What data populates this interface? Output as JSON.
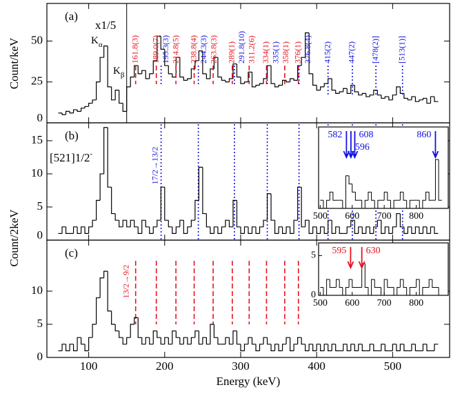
{
  "chart_data": [
    {
      "type": "histogram",
      "panel_label": "(a)",
      "y_label": "Count/keV",
      "bins": [
        60,
        65,
        70,
        75,
        80,
        85,
        90,
        95,
        100,
        105,
        110,
        115,
        120,
        125,
        130,
        135,
        140,
        145,
        150,
        155,
        160,
        165,
        170,
        175,
        180,
        185,
        190,
        195,
        200,
        205,
        210,
        215,
        220,
        225,
        230,
        235,
        240,
        245,
        250,
        255,
        260,
        265,
        270,
        275,
        280,
        285,
        290,
        295,
        300,
        305,
        310,
        315,
        320,
        325,
        330,
        335,
        340,
        345,
        350,
        355,
        360,
        365,
        370,
        375,
        380,
        385,
        390,
        395,
        400,
        405,
        410,
        415,
        420,
        425,
        430,
        435,
        440,
        445,
        450,
        455,
        460,
        465,
        470,
        475,
        480,
        485,
        490,
        495,
        500,
        505,
        510,
        515,
        520,
        525,
        530,
        535,
        540,
        545,
        550,
        555,
        560
      ],
      "values": [
        6,
        5,
        7,
        6,
        8,
        7,
        9,
        10,
        12,
        14,
        25,
        40,
        47,
        22,
        14,
        20,
        12,
        7,
        22,
        28,
        35,
        30,
        32,
        27,
        30,
        38,
        53,
        45,
        35,
        30,
        28,
        40,
        28,
        26,
        27,
        33,
        38,
        44,
        30,
        27,
        33,
        40,
        28,
        26,
        25,
        27,
        36,
        28,
        24,
        25,
        31,
        22,
        23,
        24,
        27,
        35,
        24,
        22,
        23,
        26,
        25,
        27,
        26,
        35,
        40,
        55,
        30,
        23,
        20,
        22,
        24,
        27,
        20,
        18,
        19,
        21,
        18,
        23,
        19,
        17,
        18,
        16,
        17,
        20,
        17,
        15,
        16,
        14,
        17,
        22,
        18,
        15,
        14,
        16,
        13,
        14,
        15,
        12,
        16,
        13
      ],
      "xlim": [
        45,
        575
      ],
      "ylim": [
        0,
        73
      ],
      "xticks": [
        100,
        200,
        300,
        400,
        500
      ],
      "yticks": [
        0,
        25,
        50
      ],
      "scale_break": 150,
      "scale_note": "x1/5",
      "k_alpha": {
        "base": "K",
        "sub": "α"
      },
      "k_beta": {
        "base": "K",
        "sub": "β"
      },
      "peaks": [
        {
          "energy": 161.8,
          "label": "161.8(3)",
          "color": "#e8101c"
        },
        {
          "energy": 189.0,
          "label": "189.0(7)",
          "color": "#e8101c"
        },
        {
          "energy": 195.3,
          "label": "195.3(3)",
          "color": "#1010e0"
        },
        {
          "energy": 214.8,
          "label": "214.8(5)",
          "color": "#e8101c"
        },
        {
          "energy": 238.8,
          "label": "238.8(4)",
          "color": "#e8101c"
        },
        {
          "energy": 244.3,
          "label": "244.3(3)",
          "color": "#1010e0"
        },
        {
          "energy": 263.8,
          "label": "263.8(3)",
          "color": "#e8101c"
        },
        {
          "energy": 289,
          "label": "289(1)",
          "color": "#e8101c"
        },
        {
          "energy": 291.8,
          "label": "291.8(10)",
          "color": "#1010e0"
        },
        {
          "energy": 311.2,
          "label": "311.2(6)",
          "color": "#e8101c"
        },
        {
          "energy": 334,
          "label": "334(1)",
          "color": "#e8101c"
        },
        {
          "energy": 335,
          "label": "335(1)",
          "color": "#1010e0"
        },
        {
          "energy": 358,
          "label": "358(1)",
          "color": "#e8101c"
        },
        {
          "energy": 376,
          "label": "376(1)",
          "color": "#e8101c"
        },
        {
          "energy": 376.8,
          "label": "376.8(4)",
          "color": "#1010e0"
        },
        {
          "energy": 415,
          "label": "415(2)",
          "color": "#1010e0"
        },
        {
          "energy": 447,
          "label": "447(2)",
          "color": "#1010e0"
        },
        {
          "energy": 478,
          "label": "[478(2)]",
          "color": "#1010e0"
        },
        {
          "energy": 513,
          "label": "[513(1)]",
          "color": "#1010e0"
        }
      ]
    },
    {
      "type": "histogram",
      "panel_label": "(b)",
      "y_label": "Count/2keV",
      "band_label": {
        "base": "[521]1/2",
        "sup": "-"
      },
      "transition": "17/2→13/2",
      "transition_color": "#1010e0",
      "bins": [
        60,
        65,
        70,
        75,
        80,
        85,
        90,
        95,
        100,
        105,
        110,
        115,
        120,
        125,
        130,
        135,
        140,
        145,
        150,
        155,
        160,
        165,
        170,
        175,
        180,
        185,
        190,
        195,
        200,
        205,
        210,
        215,
        220,
        225,
        230,
        235,
        240,
        245,
        250,
        255,
        260,
        265,
        270,
        275,
        280,
        285,
        290,
        295,
        300,
        305,
        310,
        315,
        320,
        325,
        330,
        335,
        340,
        345,
        350,
        355,
        360,
        365,
        370,
        375,
        380,
        385,
        390,
        395,
        400,
        405,
        410,
        415,
        420,
        425,
        430,
        435,
        440,
        445,
        450,
        455,
        460,
        465,
        470,
        475,
        480,
        485,
        490,
        495,
        500,
        505,
        510,
        515,
        520,
        525,
        530,
        535,
        540,
        545,
        550,
        555,
        560
      ],
      "values": [
        1,
        2,
        1,
        1,
        2,
        1,
        2,
        1,
        2,
        3,
        6,
        10,
        17,
        8,
        4,
        3,
        2,
        3,
        2,
        3,
        2,
        1,
        3,
        2,
        1,
        2,
        3,
        8,
        3,
        2,
        1,
        2,
        3,
        1,
        2,
        3,
        6,
        11,
        4,
        2,
        1,
        2,
        1,
        2,
        3,
        2,
        6,
        2,
        1,
        2,
        1,
        2,
        1,
        2,
        3,
        7,
        3,
        1,
        2,
        1,
        2,
        1,
        3,
        8,
        2,
        3,
        1,
        2,
        1,
        2,
        1,
        3,
        1,
        2,
        1,
        1,
        2,
        3,
        1,
        2,
        1,
        2,
        1,
        2,
        3,
        1,
        2,
        1,
        2,
        4,
        2,
        1,
        2,
        1,
        2,
        1,
        2,
        1,
        2,
        1
      ],
      "xlim": [
        45,
        575
      ],
      "ylim": [
        0,
        17.7
      ],
      "xticks": [
        100,
        200,
        300,
        400,
        500
      ],
      "yticks": [
        0,
        5,
        10,
        15
      ],
      "inset": {
        "bins": [
          500,
          510,
          520,
          530,
          540,
          550,
          560,
          570,
          580,
          590,
          600,
          610,
          620,
          630,
          640,
          650,
          660,
          670,
          680,
          690,
          700,
          710,
          720,
          730,
          740,
          750,
          760,
          770,
          780,
          790,
          800,
          810,
          820,
          830,
          840,
          850,
          860,
          870,
          880
        ],
        "values": [
          1,
          0,
          1,
          2,
          1,
          1,
          1,
          0,
          4,
          3,
          2,
          1,
          1,
          0,
          1,
          2,
          1,
          0,
          1,
          1,
          2,
          1,
          0,
          1,
          1,
          2,
          1,
          0,
          1,
          1,
          1,
          0,
          1,
          2,
          1,
          1,
          6,
          1
        ],
        "xlim": [
          495,
          900
        ],
        "ylim": [
          0,
          10
        ],
        "xticks": [
          500,
          600,
          700,
          800
        ],
        "arrows": [
          582,
          596,
          608,
          860
        ],
        "arrow_color": "#1010e0"
      }
    },
    {
      "type": "histogram",
      "panel_label": "(c)",
      "x_label": "Energy (keV)",
      "transition": "13/2→9/2",
      "transition_color": "#e8101c",
      "bins": [
        60,
        65,
        70,
        75,
        80,
        85,
        90,
        95,
        100,
        105,
        110,
        115,
        120,
        125,
        130,
        135,
        140,
        145,
        150,
        155,
        160,
        165,
        170,
        175,
        180,
        185,
        190,
        195,
        200,
        205,
        210,
        215,
        220,
        225,
        230,
        235,
        240,
        245,
        250,
        255,
        260,
        265,
        270,
        275,
        280,
        285,
        290,
        295,
        300,
        305,
        310,
        315,
        320,
        325,
        330,
        335,
        340,
        345,
        350,
        355,
        360,
        365,
        370,
        375,
        380,
        385,
        390,
        395,
        400,
        405,
        410,
        415,
        420,
        425,
        430,
        435,
        440,
        445,
        450,
        455,
        460,
        465,
        470,
        475,
        480,
        485,
        490,
        495,
        500,
        505,
        510,
        515,
        520,
        525,
        530,
        535,
        540,
        545,
        550,
        555,
        560
      ],
      "values": [
        1,
        2,
        1,
        2,
        1,
        3,
        2,
        1,
        3,
        5,
        9,
        12,
        13,
        7,
        5,
        4,
        3,
        2,
        3,
        5,
        6,
        3,
        2,
        3,
        2,
        4,
        3,
        2,
        3,
        2,
        4,
        3,
        2,
        3,
        2,
        3,
        4,
        2,
        3,
        2,
        5,
        3,
        2,
        2,
        3,
        2,
        4,
        2,
        1,
        2,
        3,
        2,
        1,
        2,
        3,
        2,
        1,
        2,
        1,
        2,
        3,
        1,
        2,
        3,
        2,
        1,
        2,
        1,
        2,
        1,
        2,
        1,
        2,
        1,
        1,
        2,
        1,
        2,
        1,
        2,
        1,
        1,
        2,
        1,
        1,
        2,
        1,
        1,
        2,
        1,
        2,
        1,
        1,
        2,
        1,
        1,
        2,
        1,
        1,
        2
      ],
      "xlim": [
        45,
        575
      ],
      "ylim": [
        0,
        17.7
      ],
      "xticks": [
        100,
        200,
        300,
        400,
        500
      ],
      "yticks": [
        0,
        5,
        10
      ],
      "inset": {
        "bins": [
          500,
          510,
          520,
          530,
          540,
          550,
          560,
          570,
          580,
          590,
          600,
          610,
          620,
          630,
          640,
          650,
          660,
          670,
          680,
          690,
          700,
          710,
          720,
          730,
          740,
          750,
          760,
          770,
          780,
          790,
          800,
          810,
          820,
          830,
          840,
          850,
          860,
          870,
          880
        ],
        "values": [
          1,
          0,
          2,
          1,
          1,
          2,
          1,
          0,
          1,
          2,
          1,
          1,
          1,
          4,
          1,
          0,
          2,
          1,
          1,
          0,
          2,
          1,
          1,
          0,
          1,
          2,
          1,
          0,
          1,
          1,
          2,
          0,
          1,
          1,
          2,
          1,
          1,
          0
        ],
        "xlim": [
          495,
          900
        ],
        "ylim": [
          0,
          6.6
        ],
        "xticks": [
          500,
          600,
          700,
          800
        ],
        "yticks": [
          0,
          5
        ],
        "arrows": [
          595,
          630
        ],
        "arrow_color": "#e8101c"
      }
    }
  ]
}
